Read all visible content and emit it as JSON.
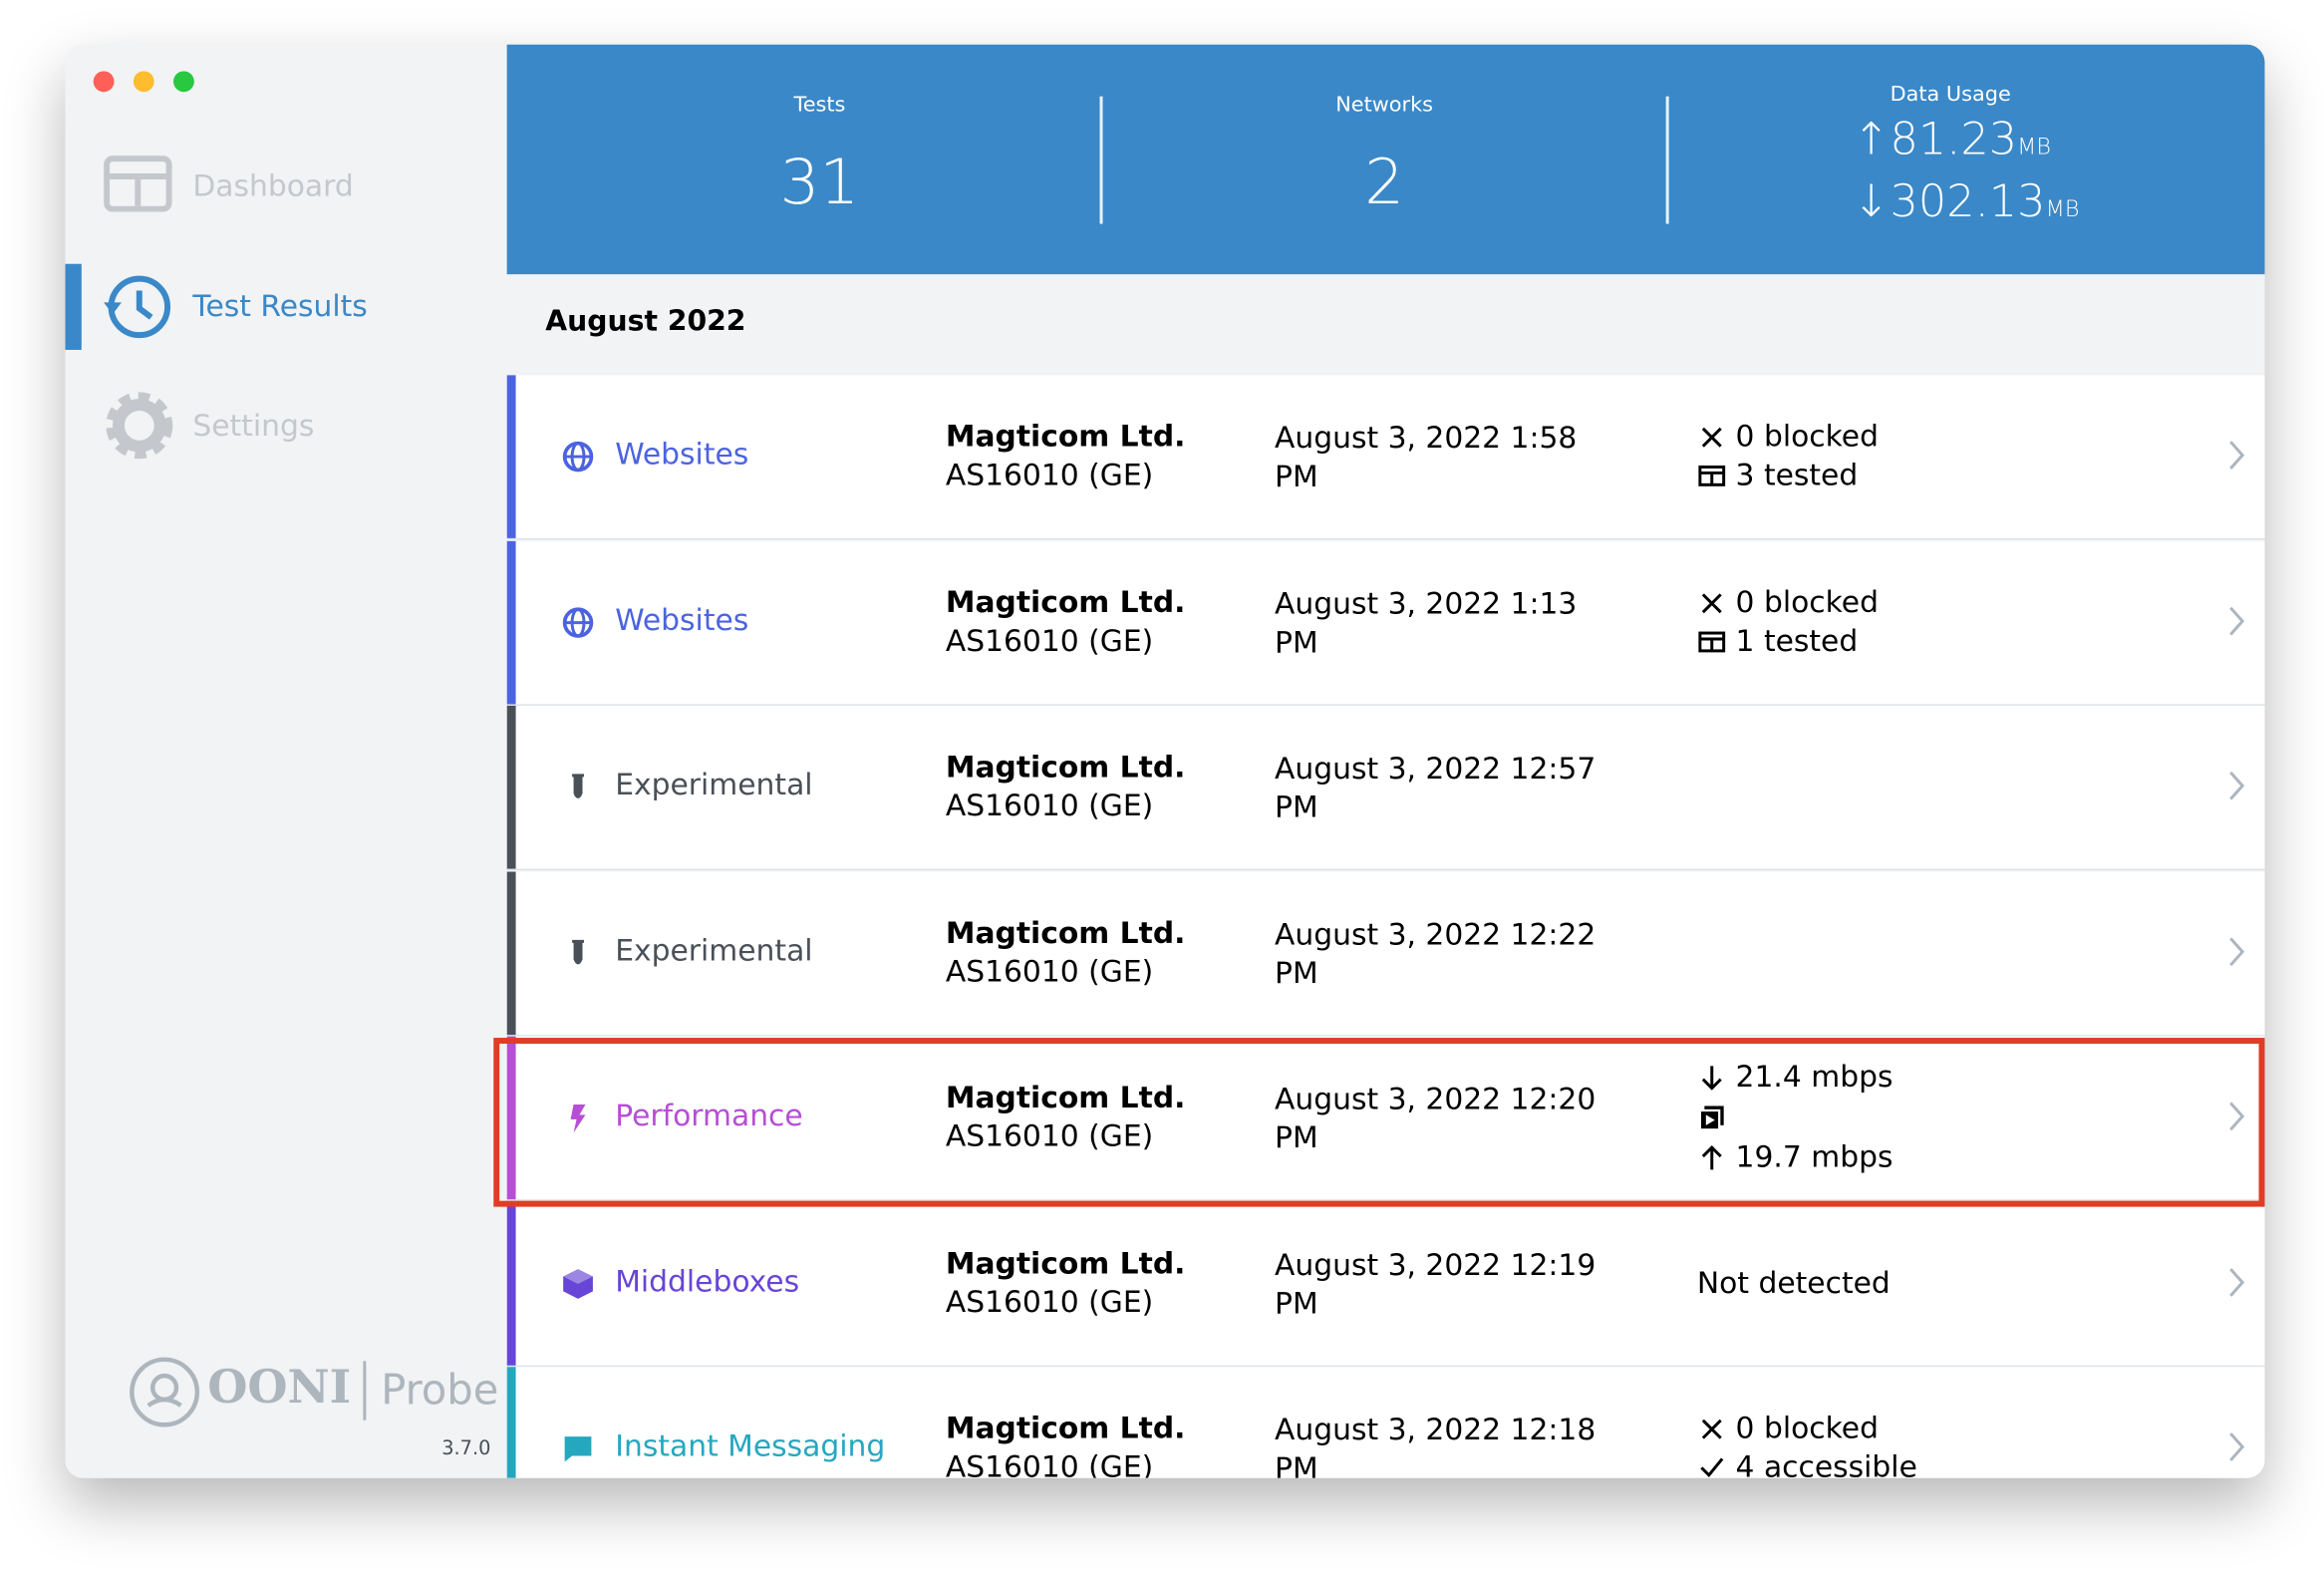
{
  "sidebar": {
    "nav": [
      "Dashboard",
      "Test Results",
      "Settings"
    ],
    "logo": {
      "name": "OONI",
      "product": "Probe"
    },
    "version": "3.7.0"
  },
  "header": {
    "stats": [
      {
        "label": "Tests",
        "value": "31"
      },
      {
        "label": "Networks",
        "value": "2"
      }
    ],
    "data_usage": {
      "label": "Data Usage",
      "upload": "81.23",
      "download": "302.13",
      "unit": "MB"
    }
  },
  "results": {
    "month": "August 2022",
    "rows": [
      {
        "test": "Websites",
        "color": "#4c63e0",
        "network": "Magticom Ltd.",
        "asn": "AS16010 (GE)",
        "date": "August 3, 2022 1:58 PM",
        "stats": [
          "0 blocked",
          "3 tested"
        ]
      },
      {
        "test": "Websites",
        "color": "#4c63e0",
        "network": "Magticom Ltd.",
        "asn": "AS16010 (GE)",
        "date": "August 3, 2022 1:13 PM",
        "stats": [
          "0 blocked",
          "1 tested"
        ]
      },
      {
        "test": "Experimental",
        "color": "#495057",
        "network": "Magticom Ltd.",
        "asn": "AS16010 (GE)",
        "date": "August 3, 2022 12:57 PM",
        "stats": []
      },
      {
        "test": "Experimental",
        "color": "#495057",
        "network": "Magticom Ltd.",
        "asn": "AS16010 (GE)",
        "date": "August 3, 2022 12:22 PM",
        "stats": []
      },
      {
        "test": "Performance",
        "color": "#b64ed6",
        "network": "Magticom Ltd.",
        "asn": "AS16010 (GE)",
        "date": "August 3, 2022 12:20 PM",
        "stats": [
          "21.4 mbps",
          "19.7 mbps"
        ]
      },
      {
        "test": "Middleboxes",
        "color": "#6745d6",
        "network": "Magticom Ltd.",
        "asn": "AS16010 (GE)",
        "date": "August 3, 2022 12:19 PM",
        "stats": [
          "Not detected"
        ]
      },
      {
        "test": "Instant Messaging",
        "color": "#26a7c0",
        "network": "Magticom Ltd.",
        "asn": "AS16010 (GE)",
        "date": "August 3, 2022 12:18 PM",
        "stats": [
          "0 blocked",
          "4 accessible"
        ]
      }
    ]
  }
}
